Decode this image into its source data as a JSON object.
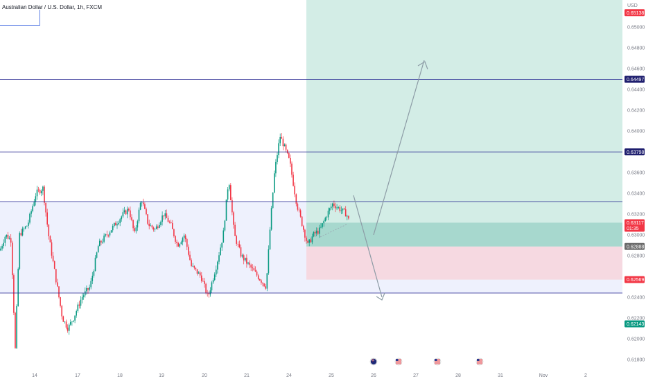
{
  "header": {
    "symbol_title": "Australian Dollar / U.S. Dollar, 1h, FXCM",
    "currency": "USD"
  },
  "price_axis": {
    "ticks": [
      "0.65000",
      "0.64800",
      "0.64600",
      "0.64400",
      "0.64200",
      "0.64000",
      "0.63600",
      "0.63400",
      "0.63200",
      "0.63000",
      "0.62800",
      "0.62400",
      "0.62200",
      "0.62000",
      "0.61800"
    ],
    "tick_values": [
      0.65,
      0.648,
      0.646,
      0.644,
      0.642,
      0.64,
      0.636,
      0.634,
      0.632,
      0.63,
      0.628,
      0.624,
      0.622,
      0.62,
      0.618
    ],
    "badges": [
      {
        "label": "0.65138",
        "value": 0.65138,
        "color": "#f23645",
        "sub": ""
      },
      {
        "label": "0.64497",
        "value": 0.64497,
        "color": "#1e1e6e",
        "sub": ""
      },
      {
        "label": "0.63798",
        "value": 0.63798,
        "color": "#1e1e6e",
        "sub": ""
      },
      {
        "label": "0.63117",
        "value": 0.63117,
        "color": "#f23645",
        "sub": "01:35"
      },
      {
        "label": "0.62888",
        "value": 0.62888,
        "color": "#6b6b6b",
        "sub": ""
      },
      {
        "label": "0.62569",
        "value": 0.62569,
        "color": "#f23645",
        "sub": ""
      },
      {
        "label": "0.62143",
        "value": 0.62143,
        "color": "#089981",
        "sub": ""
      }
    ]
  },
  "time_axis": {
    "labels": [
      "14",
      "17",
      "18",
      "19",
      "20",
      "21",
      "24",
      "25",
      "26",
      "27",
      "28",
      "31",
      "Nov",
      "2"
    ]
  },
  "levels": {
    "horizontal_lines": [
      0.64497,
      0.63798,
      0.6332,
      0.6244
    ],
    "range_box": {
      "top": 0.6332,
      "bottom": 0.6244
    }
  },
  "position_tool": {
    "entry": 0.62888,
    "target": 0.65138,
    "stop": 0.62569,
    "current": 0.63117
  },
  "events": [
    "au-flag-icon",
    "us-flag-icon",
    "us-flag-icon",
    "us-flag-icon"
  ],
  "colors": {
    "up": "#089981",
    "down": "#f23645",
    "level_line": "#1e1e8c",
    "range_fill": "#eef1fd",
    "profit_fill": "#d3ede6",
    "loss_fill": "#f6d9e1"
  }
}
